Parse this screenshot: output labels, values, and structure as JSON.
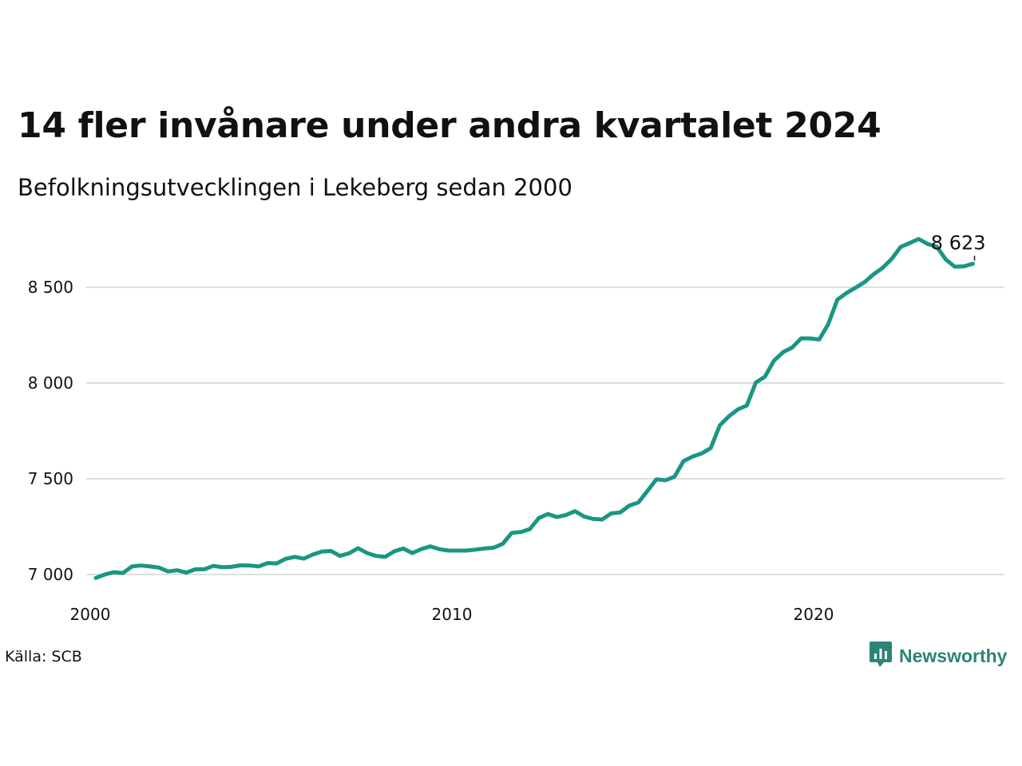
{
  "title": "14 fler invånare under andra kvartalet 2024",
  "subtitle": "Befolkningsutvecklingen i Lekeberg sedan 2000",
  "source": "Källa: SCB",
  "brand": "Newsworthy",
  "colors": {
    "line": "#1a9683",
    "grid": "#dedede",
    "brand": "#2d8474"
  },
  "chart_data": {
    "type": "line",
    "title": "14 fler invånare under andra kvartalet 2024",
    "subtitle": "Befolkningsutvecklingen i Lekeberg sedan 2000",
    "xlabel": "",
    "ylabel": "",
    "xlim": [
      2000,
      2025
    ],
    "ylim": [
      6985,
      8790
    ],
    "grid": true,
    "x_ticks": [
      2000,
      2010,
      2020
    ],
    "x_tick_labels": [
      "2000",
      "2010",
      "2020"
    ],
    "y_ticks": [
      7000,
      7500,
      8000,
      8500
    ],
    "y_tick_labels": [
      "7 000",
      "7 500",
      "8 000",
      "8 500"
    ],
    "end_label": "8 623",
    "series": [
      {
        "x": [
          2000.0,
          2000.25,
          2000.5,
          2000.75,
          2001.0,
          2001.25,
          2001.5,
          2001.75,
          2002.0,
          2002.25,
          2002.5,
          2002.75,
          2003.0,
          2003.25,
          2003.5,
          2003.75,
          2004.0,
          2004.25,
          2004.5,
          2004.75,
          2005.0,
          2005.25,
          2005.5,
          2005.75,
          2006.0,
          2006.25,
          2006.5,
          2006.75,
          2007.0,
          2007.25,
          2007.5,
          2007.75,
          2008.0,
          2008.25,
          2008.5,
          2008.75,
          2009.0,
          2009.25,
          2009.5,
          2009.75,
          2010.0,
          2010.25,
          2010.5,
          2010.75,
          2011.0,
          2011.25,
          2011.5,
          2011.75,
          2012.0,
          2012.25,
          2012.5,
          2012.75,
          2013.0,
          2013.25,
          2013.5,
          2013.75,
          2014.0,
          2014.25,
          2014.5,
          2014.75,
          2015.0,
          2015.25,
          2015.5,
          2015.75,
          2016.0,
          2016.25,
          2016.5,
          2016.75,
          2017.0,
          2017.25,
          2017.5,
          2017.75,
          2018.0,
          2018.25,
          2018.5,
          2018.75,
          2019.0,
          2019.25,
          2019.5,
          2019.75,
          2020.0,
          2020.25,
          2020.5,
          2020.75,
          2021.0,
          2021.25,
          2021.5,
          2021.75,
          2022.0,
          2022.25,
          2022.5,
          2022.75,
          2023.0,
          2023.25,
          2023.5,
          2023.75,
          2024.0,
          2024.25
        ],
        "values": [
          6982,
          7000,
          7012,
          7008,
          7042,
          7047,
          7042,
          7036,
          7016,
          7022,
          7010,
          7027,
          7027,
          7045,
          7038,
          7040,
          7048,
          7047,
          7042,
          7060,
          7058,
          7082,
          7092,
          7083,
          7104,
          7120,
          7123,
          7097,
          7111,
          7137,
          7112,
          7097,
          7092,
          7121,
          7136,
          7112,
          7133,
          7147,
          7132,
          7125,
          7125,
          7125,
          7130,
          7136,
          7140,
          7160,
          7217,
          7222,
          7237,
          7295,
          7316,
          7300,
          7311,
          7331,
          7303,
          7290,
          7287,
          7319,
          7324,
          7360,
          7376,
          7436,
          7497,
          7492,
          7511,
          7592,
          7616,
          7632,
          7660,
          7778,
          7826,
          7862,
          7883,
          8003,
          8033,
          8117,
          8161,
          8185,
          8233,
          8233,
          8227,
          8307,
          8435,
          8469,
          8497,
          8526,
          8567,
          8601,
          8647,
          8710,
          8731,
          8752,
          8726,
          8712,
          8645,
          8607,
          8609,
          8623
        ]
      }
    ]
  }
}
